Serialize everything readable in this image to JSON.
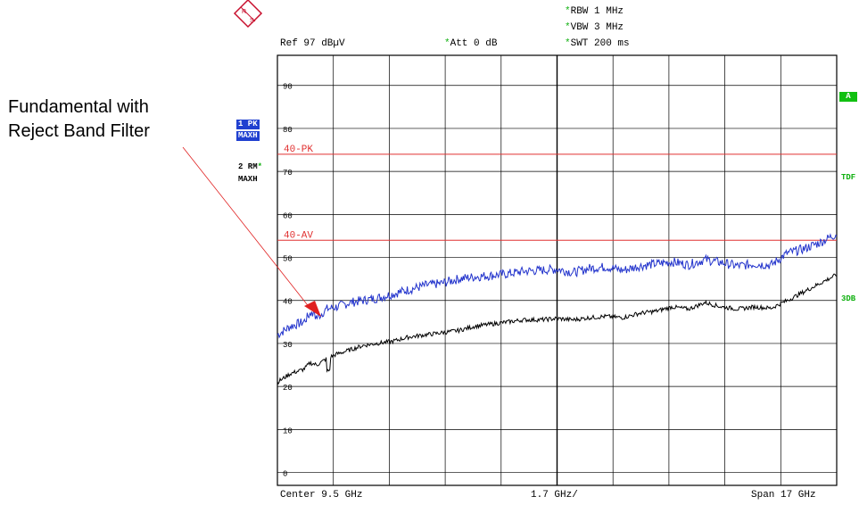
{
  "logo": {
    "text": "R&S",
    "color": "#c8102e"
  },
  "header": {
    "ref": "Ref  97 dBµV",
    "att": "Att  0 dB",
    "rbw": "RBW  1 MHz",
    "vbw": "VBW  3 MHz",
    "swt": "SWT  200 ms"
  },
  "traces_info": {
    "t1_label": "1 PK",
    "t1_mode": "MAXH",
    "t2_label": "2 RM",
    "t2_mode": "MAXH"
  },
  "right_labels": {
    "a": "A",
    "tdf": "TDF",
    "db": "3DB"
  },
  "annotation": {
    "line1": "Fundamental with",
    "line2": "Reject Band Filter"
  },
  "footer": {
    "center": "Center  9.5 GHz",
    "div": "1.7 GHz/",
    "span": "Span  17 GHz"
  },
  "colors": {
    "trace1": "#2233cc",
    "trace2": "#000000",
    "limit": "#e03030",
    "green": "#11b011",
    "badge": "#2040d0"
  },
  "chart_data": {
    "type": "line",
    "x_center_ghz": 9.5,
    "x_span_ghz": 17,
    "x_range_ghz": [
      1,
      18
    ],
    "y_unit": "dBµV",
    "ylim": [
      -3,
      97
    ],
    "yticks": [
      0,
      10,
      20,
      30,
      40,
      50,
      60,
      70,
      80,
      90
    ],
    "grid": true,
    "limit_lines": [
      {
        "name": "40-PK",
        "value": 74
      },
      {
        "name": "40-AV",
        "value": 54
      }
    ],
    "series": [
      {
        "name": "1 PK",
        "x": [
          1.0,
          1.4,
          1.8,
          2.0,
          2.2,
          2.5,
          2.8,
          3.2,
          3.6,
          4.0,
          4.5,
          5.0,
          5.5,
          6.0,
          6.5,
          7.0,
          7.5,
          8.0,
          8.5,
          9.0,
          9.5,
          10.0,
          10.5,
          11.0,
          11.5,
          12.0,
          12.5,
          13.0,
          13.5,
          14.0,
          14.5,
          15.0,
          15.5,
          16.0,
          16.5,
          17.0,
          17.5,
          18.0
        ],
        "values": [
          32,
          34,
          35,
          37,
          36,
          38,
          38.5,
          39.5,
          40,
          40.5,
          41.5,
          42.5,
          43.5,
          44,
          45,
          45.5,
          45.8,
          46.2,
          46.8,
          47,
          47.3,
          46.5,
          47.5,
          47.8,
          47,
          48,
          48.5,
          49,
          48.3,
          49.5,
          48.8,
          48,
          48.5,
          48.2,
          51,
          52,
          53.5,
          55.5
        ]
      },
      {
        "name": "2 RM",
        "x": [
          1.0,
          1.4,
          1.8,
          2.0,
          2.2,
          2.5,
          2.8,
          3.2,
          3.6,
          4.0,
          4.5,
          5.0,
          5.5,
          6.0,
          6.5,
          7.0,
          7.5,
          8.0,
          8.5,
          9.0,
          9.5,
          10.0,
          10.5,
          11.0,
          11.5,
          12.0,
          12.5,
          13.0,
          13.5,
          14.0,
          14.5,
          15.0,
          15.5,
          16.0,
          16.5,
          17.0,
          17.5,
          18.0
        ],
        "values": [
          21,
          23,
          24,
          25.5,
          25,
          26.5,
          27.5,
          28.5,
          29.5,
          30,
          30.5,
          31.5,
          32,
          32.5,
          33,
          34,
          34.5,
          35,
          35.5,
          35.5,
          35.8,
          35.5,
          36,
          36.3,
          36,
          37,
          37.5,
          38.5,
          38,
          39.5,
          38.5,
          38,
          38.5,
          38.2,
          40,
          42,
          44,
          46
        ]
      }
    ]
  }
}
